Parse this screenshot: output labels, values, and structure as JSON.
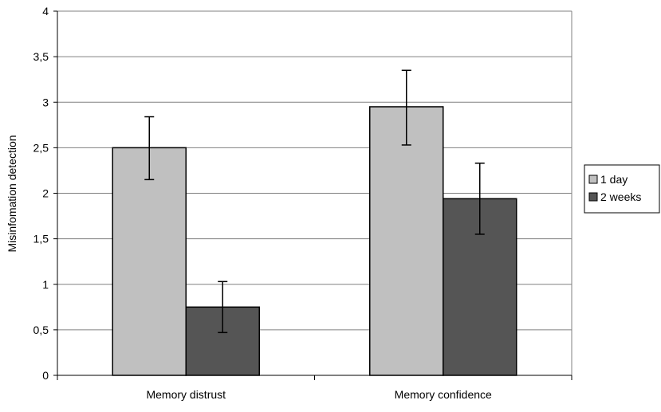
{
  "chart_data": {
    "type": "bar",
    "title": "",
    "xlabel": "",
    "ylabel": "Misinfomation detection",
    "ylim": [
      0,
      4
    ],
    "yticks": [
      0,
      0.5,
      1,
      1.5,
      2,
      2.5,
      3,
      3.5,
      4
    ],
    "ytick_labels": [
      "0",
      "0,5",
      "1",
      "1,5",
      "2",
      "2,5",
      "3",
      "3,5",
      "4"
    ],
    "categories": [
      "Memory distrust",
      "Memory confidence"
    ],
    "series": [
      {
        "name": "1 day",
        "color": "#c0c0c0",
        "values": [
          2.5,
          2.95
        ],
        "error_low": [
          2.15,
          2.53
        ],
        "error_high": [
          2.84,
          3.35
        ]
      },
      {
        "name": "2 weeks",
        "color": "#555555",
        "values": [
          0.75,
          1.94
        ],
        "error_low": [
          0.47,
          1.55
        ],
        "error_high": [
          1.03,
          2.33
        ]
      }
    ],
    "grid": true,
    "legend_position": "right"
  }
}
